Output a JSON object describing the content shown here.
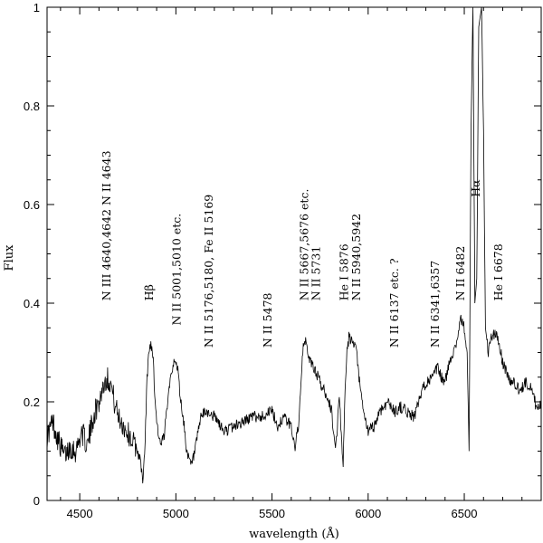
{
  "chart_data": {
    "type": "line",
    "xlabel": "wavelength (Å)",
    "ylabel": "Flux",
    "xlim": [
      4330,
      6900
    ],
    "ylim": [
      0,
      1
    ],
    "x_ticks": [
      4500,
      5000,
      5500,
      6000,
      6500
    ],
    "y_ticks": [
      0,
      0.2,
      0.4,
      0.6,
      0.8,
      1
    ],
    "x_tick_labels": [
      "4500",
      "5000",
      "5500",
      "6000",
      "6500"
    ],
    "y_tick_labels": [
      "0",
      "0.2",
      "0.4",
      "0.6",
      "0.8",
      "1"
    ],
    "grid": false,
    "legend": "none",
    "spectrum": {
      "x": [
        4330,
        4360,
        4390,
        4420,
        4450,
        4480,
        4510,
        4540,
        4570,
        4600,
        4620,
        4640,
        4660,
        4680,
        4700,
        4730,
        4760,
        4790,
        4810,
        4830,
        4840,
        4850,
        4860,
        4870,
        4880,
        4890,
        4900,
        4920,
        4940,
        4960,
        4980,
        5000,
        5010,
        5020,
        5040,
        5060,
        5080,
        5100,
        5130,
        5160,
        5200,
        5250,
        5300,
        5350,
        5400,
        5450,
        5480,
        5500,
        5530,
        5560,
        5600,
        5620,
        5640,
        5660,
        5670,
        5680,
        5700,
        5730,
        5760,
        5790,
        5810,
        5830,
        5850,
        5870,
        5880,
        5890,
        5900,
        5920,
        5940,
        5960,
        5980,
        6000,
        6030,
        6060,
        6100,
        6140,
        6170,
        6200,
        6240,
        6280,
        6300,
        6340,
        6360,
        6380,
        6400,
        6430,
        6460,
        6480,
        6500,
        6515,
        6525,
        6535,
        6545,
        6555,
        6565,
        6575,
        6590,
        6600,
        6610,
        6625,
        6640,
        6660,
        6680,
        6700,
        6720,
        6740,
        6760,
        6790,
        6820,
        6850,
        6880,
        6900
      ],
      "y": [
        0.13,
        0.16,
        0.12,
        0.09,
        0.11,
        0.1,
        0.14,
        0.11,
        0.17,
        0.2,
        0.23,
        0.25,
        0.24,
        0.2,
        0.17,
        0.15,
        0.13,
        0.11,
        0.09,
        0.04,
        0.12,
        0.25,
        0.3,
        0.32,
        0.3,
        0.22,
        0.16,
        0.11,
        0.13,
        0.22,
        0.27,
        0.28,
        0.27,
        0.22,
        0.16,
        0.09,
        0.07,
        0.1,
        0.17,
        0.18,
        0.17,
        0.14,
        0.15,
        0.16,
        0.17,
        0.17,
        0.18,
        0.18,
        0.15,
        0.17,
        0.15,
        0.11,
        0.16,
        0.3,
        0.33,
        0.31,
        0.28,
        0.26,
        0.23,
        0.21,
        0.18,
        0.1,
        0.21,
        0.07,
        0.22,
        0.3,
        0.33,
        0.32,
        0.3,
        0.22,
        0.17,
        0.14,
        0.15,
        0.18,
        0.2,
        0.18,
        0.19,
        0.18,
        0.17,
        0.22,
        0.24,
        0.25,
        0.27,
        0.25,
        0.24,
        0.29,
        0.32,
        0.37,
        0.35,
        0.3,
        0.1,
        0.75,
        1.0,
        0.4,
        0.45,
        0.96,
        1.0,
        0.75,
        0.35,
        0.3,
        0.33,
        0.34,
        0.32,
        0.28,
        0.26,
        0.24,
        0.24,
        0.22,
        0.24,
        0.23,
        0.18,
        0.2
      ]
    },
    "annotations": [
      {
        "text": "N III 4640,4642 N II 4643",
        "x": 4640,
        "y": 0.405
      },
      {
        "text": "Hβ",
        "x": 4861,
        "y": 0.405
      },
      {
        "text": "N II 5001,5010 etc.",
        "x": 5005,
        "y": 0.355
      },
      {
        "text": "N II 5176,5180, Fe II 5169",
        "x": 5172,
        "y": 0.31
      },
      {
        "text": "N II 5478",
        "x": 5478,
        "y": 0.31
      },
      {
        "text": "N II 5667,5676 etc.",
        "x": 5670,
        "y": 0.405
      },
      {
        "text": "N II 5731",
        "x": 5731,
        "y": 0.405
      },
      {
        "text": "He I 5876",
        "x": 5876,
        "y": 0.405
      },
      {
        "text": "N II 5940,5942",
        "x": 5940,
        "y": 0.405
      },
      {
        "text": "N II 6137 etc. ?",
        "x": 6137,
        "y": 0.31
      },
      {
        "text": "N II 6341,6357",
        "x": 6349,
        "y": 0.31
      },
      {
        "text": "N II 6482",
        "x": 6482,
        "y": 0.405
      },
      {
        "text": "Hα",
        "x": 6560,
        "y": 0.615
      },
      {
        "text": "He I 6678",
        "x": 6678,
        "y": 0.405
      }
    ]
  }
}
